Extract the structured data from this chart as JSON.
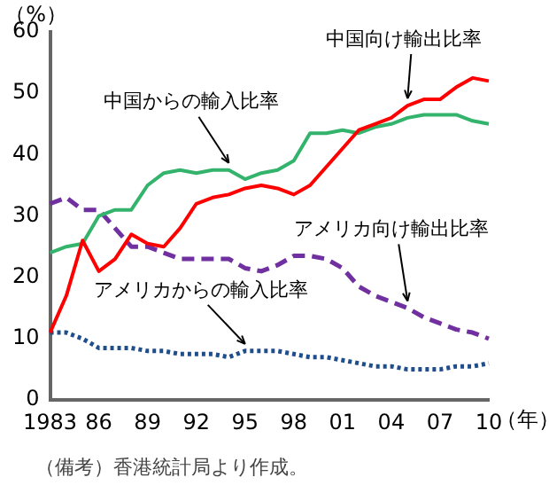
{
  "chart_data": {
    "type": "line",
    "ylabel": "（%）",
    "xlabel": "（年）",
    "categories": [
      "1983",
      null,
      null,
      "86",
      null,
      null,
      "89",
      null,
      null,
      "92",
      null,
      null,
      "95",
      null,
      null,
      "98",
      null,
      null,
      "01",
      null,
      null,
      "04",
      null,
      null,
      "07",
      null,
      null,
      "10"
    ],
    "series": [
      {
        "name": "中国向け輸出比率",
        "color": "#ff0000",
        "line_style": "solid",
        "values": [
          11,
          17,
          26,
          21,
          23,
          27,
          25.5,
          25,
          28,
          32,
          33,
          33.5,
          34.5,
          35,
          34.5,
          33.5,
          35,
          38,
          41,
          44,
          45,
          46,
          48,
          49,
          49,
          51,
          52.5,
          52
        ]
      },
      {
        "name": "中国からの輸入比率",
        "color": "#33b36b",
        "line_style": "solid",
        "values": [
          24,
          25,
          25.5,
          30,
          31,
          31,
          35,
          37,
          37.5,
          37,
          37.5,
          37.5,
          36,
          37,
          37.5,
          39,
          43.5,
          43.5,
          44,
          43.5,
          44.5,
          45,
          46,
          46.5,
          46.5,
          46.5,
          45.5,
          45
        ]
      },
      {
        "name": "アメリカ向け輸出比率",
        "color": "#7030a0",
        "line_style": "dashed",
        "values": [
          32,
          33,
          31,
          31,
          28,
          25,
          25,
          24,
          23,
          23,
          23,
          23,
          21.5,
          21,
          22,
          23.5,
          23.5,
          23,
          21.5,
          18.5,
          17,
          16,
          15,
          13.5,
          12.5,
          11.5,
          11,
          10
        ]
      },
      {
        "name": "アメリカからの輸入比率",
        "color": "#1f4e8c",
        "line_style": "dotted",
        "values": [
          11,
          11,
          10,
          8.5,
          8.5,
          8.5,
          8,
          8,
          7.5,
          7.5,
          7.5,
          7,
          8,
          8,
          8,
          7.5,
          7,
          7,
          6.5,
          6,
          5.5,
          5.5,
          5,
          5,
          5,
          5.5,
          5.5,
          6
        ]
      }
    ],
    "ylim": [
      0,
      60
    ],
    "yticks": [
      0,
      10,
      20,
      30,
      40,
      50,
      60
    ],
    "grid": false,
    "legend": false,
    "marker": "none",
    "annotations": [
      "（備考）香港統計局より作成。"
    ]
  }
}
